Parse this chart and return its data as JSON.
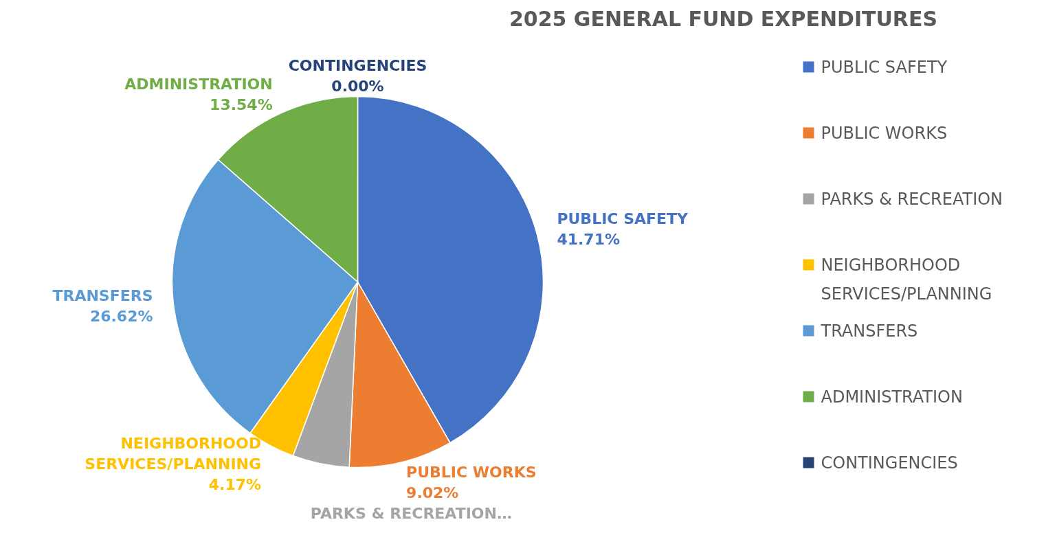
{
  "chart_data": {
    "type": "pie",
    "title": "2025 GENERAL FUND EXPENDITURES",
    "categories": [
      "PUBLIC SAFETY",
      "PUBLIC WORKS",
      "PARKS & RECREATION",
      "NEIGHBORHOOD SERVICES/PLANNING",
      "TRANSFERS",
      "ADMINISTRATION",
      "CONTINGENCIES"
    ],
    "values": [
      41.71,
      9.02,
      4.94,
      4.17,
      26.62,
      13.54,
      0.0
    ],
    "colors": [
      "#4472c4",
      "#ed7d31",
      "#a5a5a5",
      "#ffc000",
      "#5b9bd5",
      "#70ad47",
      "#264478"
    ],
    "value_labels": [
      "41.71%",
      "9.02%",
      null,
      "4.17%",
      "26.62%",
      "13.54%",
      "0.00%"
    ],
    "annotations": [
      "PARKS & RECREATION…"
    ],
    "legend": "right"
  }
}
